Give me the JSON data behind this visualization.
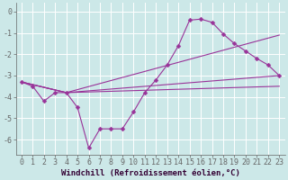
{
  "xlabel": "Windchill (Refroidissement éolien,°C)",
  "background_color": "#cce8e8",
  "grid_color": "#ffffff",
  "line_color": "#993399",
  "xlim": [
    -0.5,
    23.5
  ],
  "ylim": [
    -6.7,
    0.4
  ],
  "yticks": [
    0,
    -1,
    -2,
    -3,
    -4,
    -5,
    -6
  ],
  "xticks": [
    0,
    1,
    2,
    3,
    4,
    5,
    6,
    7,
    8,
    9,
    10,
    11,
    12,
    13,
    14,
    15,
    16,
    17,
    18,
    19,
    20,
    21,
    22,
    23
  ],
  "line1_x": [
    0,
    1,
    2,
    3,
    4,
    5,
    6,
    7,
    8,
    9,
    10,
    11,
    12,
    13,
    14,
    15,
    16,
    17,
    18,
    19,
    20,
    21,
    22,
    23
  ],
  "line1_y": [
    -3.3,
    -3.5,
    -4.2,
    -3.8,
    -3.8,
    -4.5,
    -6.4,
    -5.5,
    -5.5,
    -5.5,
    -4.7,
    -3.8,
    -3.2,
    -2.5,
    -1.6,
    -0.4,
    -0.35,
    -0.5,
    -1.05,
    -1.5,
    -1.85,
    -2.2,
    -2.5,
    -3.0
  ],
  "line2_x": [
    0,
    4,
    23
  ],
  "line2_y": [
    -3.3,
    -3.8,
    -1.1
  ],
  "line3_x": [
    0,
    4,
    23
  ],
  "line3_y": [
    -3.3,
    -3.8,
    -3.0
  ],
  "line4_x": [
    0,
    4,
    23
  ],
  "line4_y": [
    -3.3,
    -3.8,
    -3.5
  ],
  "spine_color": "#666666",
  "xlabel_fontsize": 6.5,
  "tick_fontsize": 6,
  "xlabel_color": "#330033"
}
